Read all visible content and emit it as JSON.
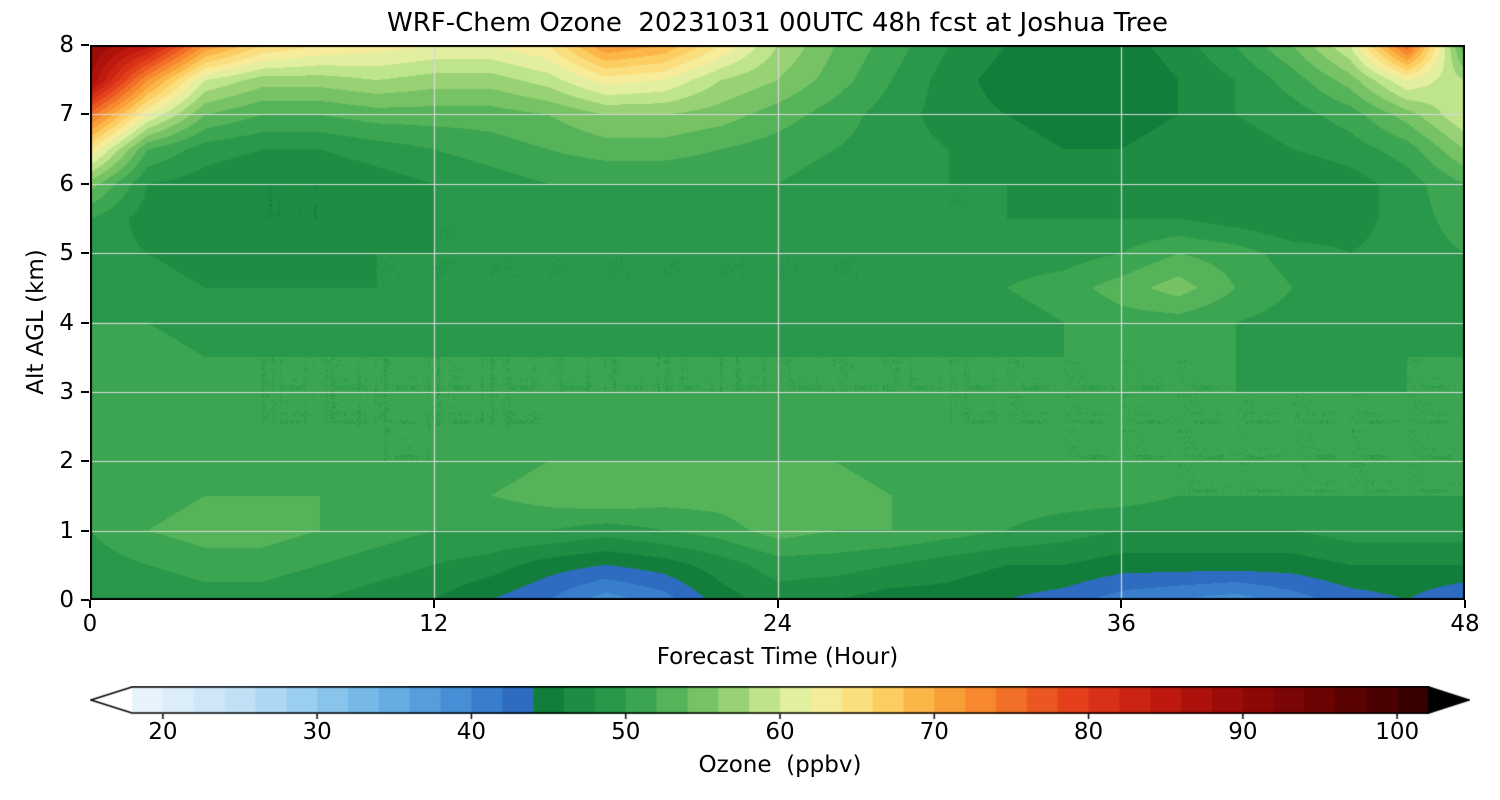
{
  "colors": {
    "background": "#ffffff",
    "frame": "#000000",
    "grid": "#d9d9d9"
  },
  "chart_data": {
    "type": "heatmap",
    "title": "WRF-Chem Ozone  20231031 00UTC 48h fcst at Joshua Tree",
    "xlabel": "Forecast Time (Hour)",
    "ylabel": "Alt AGL (km)",
    "colorbar_label": "Ozone  (ppbv)",
    "xlim": [
      0,
      48
    ],
    "ylim": [
      0,
      8
    ],
    "x_ticks": [
      0,
      12,
      24,
      36,
      48
    ],
    "y_ticks": [
      0,
      1,
      2,
      3,
      4,
      5,
      6,
      7,
      8
    ],
    "grid": true,
    "grid_x": [
      12,
      24,
      36
    ],
    "grid_y": [
      1,
      2,
      3,
      4,
      5,
      6,
      7
    ],
    "colorbar_ticks": [
      20,
      30,
      40,
      50,
      60,
      70,
      80,
      90,
      100
    ],
    "colorbar_range": [
      18,
      102
    ],
    "contour_interval": 2,
    "under_color": "#ffffff",
    "over_color": "#000000",
    "x": [
      0,
      2,
      4,
      6,
      8,
      10,
      12,
      14,
      16,
      18,
      20,
      22,
      24,
      26,
      28,
      30,
      32,
      34,
      36,
      38,
      40,
      42,
      44,
      46,
      48
    ],
    "y": [
      0,
      0.5,
      1,
      1.5,
      2,
      2.5,
      3,
      3.5,
      4,
      4.5,
      5,
      5.5,
      6,
      6.5,
      7,
      7.5,
      8
    ],
    "values": [
      [
        48,
        48,
        49,
        49,
        48,
        47,
        46,
        44,
        42,
        39,
        41,
        45,
        47,
        46,
        45,
        45,
        44,
        43,
        41,
        40,
        39,
        41,
        43,
        44,
        42
      ],
      [
        49,
        50,
        51,
        51,
        50,
        49,
        48,
        47,
        45,
        44,
        45,
        47,
        49,
        49,
        48,
        47,
        46,
        46,
        45,
        45,
        45,
        45,
        46,
        46,
        46
      ],
      [
        50,
        52,
        53,
        53,
        52,
        51,
        50,
        50,
        50,
        49,
        50,
        51,
        53,
        52,
        52,
        51,
        50,
        49,
        48,
        48,
        48,
        48,
        49,
        49,
        49
      ],
      [
        50,
        51,
        52,
        52,
        52,
        51,
        51,
        52,
        53,
        54,
        53,
        53,
        54,
        53,
        52,
        52,
        51,
        51,
        51,
        50,
        50,
        50,
        50,
        50,
        50
      ],
      [
        50,
        51,
        51,
        51,
        51,
        50,
        50,
        51,
        52,
        52,
        52,
        52,
        52,
        52,
        51,
        51,
        51,
        50,
        50,
        50,
        50,
        50,
        50,
        50,
        50
      ],
      [
        51,
        52,
        51,
        50,
        50,
        50,
        50,
        50,
        50,
        51,
        51,
        51,
        51,
        51,
        51,
        50,
        50,
        50,
        50,
        50,
        50,
        50,
        50,
        50,
        50
      ],
      [
        51,
        52,
        51,
        50,
        50,
        50,
        50,
        50,
        50,
        50,
        50,
        50,
        50,
        50,
        50,
        50,
        50,
        50,
        50,
        50,
        50,
        50,
        50,
        50,
        50
      ],
      [
        50,
        51,
        50,
        50,
        50,
        50,
        50,
        50,
        50,
        50,
        50,
        50,
        50,
        50,
        50,
        50,
        50,
        50,
        50,
        50,
        50,
        49,
        49,
        50,
        50
      ],
      [
        50,
        50,
        49,
        49,
        49,
        49,
        49,
        49,
        49,
        49,
        49,
        49,
        49,
        49,
        49,
        49,
        49,
        50,
        51,
        51,
        50,
        49,
        49,
        49,
        50
      ],
      [
        49,
        49,
        48,
        48,
        48,
        48,
        48,
        48,
        48,
        48,
        48,
        48,
        48,
        48,
        48,
        49,
        50,
        51,
        53,
        55,
        52,
        50,
        49,
        49,
        50
      ],
      [
        49,
        48,
        47,
        47,
        47,
        48,
        48,
        48,
        48,
        48,
        48,
        48,
        48,
        48,
        48,
        48,
        49,
        49,
        50,
        52,
        51,
        49,
        48,
        49,
        50
      ],
      [
        50,
        47,
        46,
        46,
        46,
        47,
        48,
        48,
        49,
        49,
        49,
        49,
        49,
        49,
        49,
        48,
        48,
        48,
        48,
        48,
        47,
        46,
        47,
        49,
        51
      ],
      [
        55,
        48,
        47,
        46,
        46,
        47,
        48,
        49,
        50,
        50,
        50,
        50,
        50,
        49,
        49,
        48,
        48,
        47,
        47,
        47,
        46,
        46,
        47,
        49,
        52
      ],
      [
        64,
        52,
        49,
        48,
        48,
        49,
        50,
        51,
        52,
        53,
        53,
        52,
        51,
        50,
        49,
        48,
        47,
        46,
        46,
        47,
        47,
        48,
        49,
        51,
        56
      ],
      [
        75,
        62,
        54,
        52,
        52,
        53,
        53,
        53,
        54,
        56,
        56,
        55,
        53,
        51,
        49,
        47,
        46,
        45,
        45,
        46,
        48,
        49,
        51,
        55,
        60
      ],
      [
        88,
        72,
        60,
        57,
        57,
        58,
        57,
        57,
        59,
        63,
        62,
        58,
        56,
        53,
        50,
        47,
        45,
        44,
        44,
        46,
        48,
        51,
        55,
        62,
        58
      ],
      [
        90,
        85,
        72,
        66,
        64,
        63,
        62,
        62,
        64,
        72,
        70,
        64,
        58,
        54,
        51,
        48,
        46,
        44,
        45,
        47,
        50,
        54,
        60,
        76,
        52
      ]
    ],
    "colormap": [
      [
        14,
        "#ffffff"
      ],
      [
        20,
        "#e3f1fb"
      ],
      [
        25,
        "#c0e0f6"
      ],
      [
        30,
        "#92cbef"
      ],
      [
        35,
        "#64ace2"
      ],
      [
        40,
        "#3f87d2"
      ],
      [
        43,
        "#2d6cc0"
      ],
      [
        43.9,
        "#2a63b8"
      ],
      [
        44.1,
        "#0e7839"
      ],
      [
        47,
        "#1e8c43"
      ],
      [
        50,
        "#2f9e4d"
      ],
      [
        53,
        "#55b35a"
      ],
      [
        56,
        "#87ca6b"
      ],
      [
        58,
        "#aadb7e"
      ],
      [
        60,
        "#d3ec99"
      ],
      [
        62,
        "#f1f2a6"
      ],
      [
        64,
        "#fae78c"
      ],
      [
        66,
        "#fcd76f"
      ],
      [
        68,
        "#fcc454"
      ],
      [
        70,
        "#fba93c"
      ],
      [
        73,
        "#f7882e"
      ],
      [
        76,
        "#ef6323"
      ],
      [
        79,
        "#e3401b"
      ],
      [
        82,
        "#d22a15"
      ],
      [
        85,
        "#be190f"
      ],
      [
        88,
        "#a40e09"
      ],
      [
        92,
        "#850606"
      ],
      [
        96,
        "#630303"
      ],
      [
        100,
        "#430101"
      ],
      [
        104,
        "#1b0000"
      ],
      [
        106,
        "#000000"
      ]
    ]
  }
}
